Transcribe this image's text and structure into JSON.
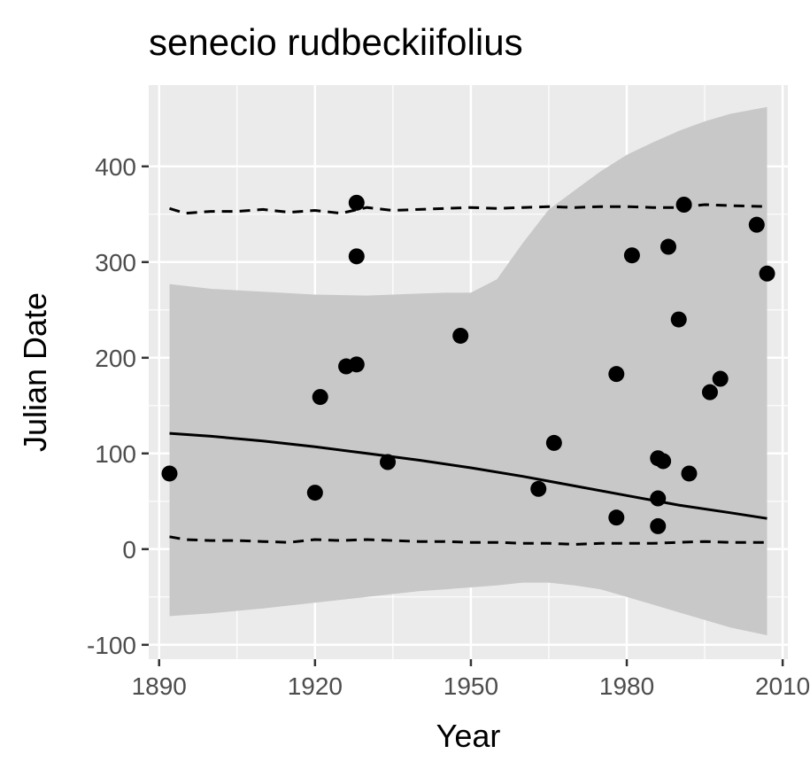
{
  "chart_data": {
    "type": "scatter",
    "title": "senecio rudbeckiifolius",
    "xlabel": "Year",
    "ylabel": "Julian Date",
    "xlim": [
      1888,
      2011
    ],
    "ylim": [
      -115,
      485
    ],
    "x_ticks": [
      1890,
      1920,
      1950,
      1980,
      2010
    ],
    "y_ticks": [
      -100,
      0,
      100,
      200,
      300,
      400
    ],
    "x_tick_labels": [
      "1890",
      "1920",
      "1950",
      "1980",
      "2010"
    ],
    "y_tick_labels": [
      "-100",
      "0",
      "100",
      "200",
      "300",
      "400"
    ],
    "grid": true,
    "colors": {
      "panel": "#ebebeb",
      "grid": "#ffffff",
      "ribbon": "#c8c8c8",
      "points": "#000000",
      "lines": "#000000"
    },
    "points": [
      {
        "x": 1892,
        "y": 79
      },
      {
        "x": 1920,
        "y": 59
      },
      {
        "x": 1921,
        "y": 159
      },
      {
        "x": 1926,
        "y": 191
      },
      {
        "x": 1928,
        "y": 362
      },
      {
        "x": 1928,
        "y": 306
      },
      {
        "x": 1928,
        "y": 193
      },
      {
        "x": 1934,
        "y": 91
      },
      {
        "x": 1948,
        "y": 223
      },
      {
        "x": 1963,
        "y": 63
      },
      {
        "x": 1966,
        "y": 111
      },
      {
        "x": 1978,
        "y": 183
      },
      {
        "x": 1978,
        "y": 33
      },
      {
        "x": 1981,
        "y": 307
      },
      {
        "x": 1986,
        "y": 95
      },
      {
        "x": 1986,
        "y": 53
      },
      {
        "x": 1986,
        "y": 24
      },
      {
        "x": 1987,
        "y": 92
      },
      {
        "x": 1988,
        "y": 316
      },
      {
        "x": 1990,
        "y": 240
      },
      {
        "x": 1991,
        "y": 360
      },
      {
        "x": 1992,
        "y": 79
      },
      {
        "x": 1996,
        "y": 164
      },
      {
        "x": 1998,
        "y": 178
      },
      {
        "x": 2005,
        "y": 339
      },
      {
        "x": 2007,
        "y": 288
      }
    ],
    "fit_line": {
      "x": [
        1892,
        1900,
        1910,
        1920,
        1930,
        1940,
        1950,
        1960,
        1970,
        1980,
        1990,
        2000,
        2007
      ],
      "y": [
        121,
        118,
        113,
        107,
        100,
        93,
        85,
        76,
        66,
        56,
        46,
        38,
        32
      ]
    },
    "ribbon": {
      "x": [
        1892,
        1900,
        1910,
        1920,
        1930,
        1940,
        1945,
        1950,
        1955,
        1960,
        1965,
        1970,
        1975,
        1980,
        1985,
        1990,
        1995,
        2000,
        2007
      ],
      "upper": [
        277,
        272,
        269,
        266,
        265,
        267,
        268,
        268,
        282,
        320,
        355,
        375,
        395,
        412,
        425,
        437,
        447,
        455,
        462
      ],
      "lower": [
        -70,
        -67,
        -62,
        -56,
        -50,
        -44,
        -42,
        -40,
        -38,
        -35,
        -35,
        -38,
        -42,
        -50,
        -58,
        -66,
        -74,
        -82,
        -90
      ]
    },
    "upper_dashed": {
      "x": [
        1892,
        1895,
        1900,
        1905,
        1910,
        1915,
        1920,
        1925,
        1930,
        1935,
        1940,
        1945,
        1950,
        1955,
        1960,
        1965,
        1970,
        1975,
        1980,
        1985,
        1990,
        1995,
        2000,
        2007
      ],
      "y": [
        356,
        351,
        353,
        353,
        355,
        352,
        354,
        351,
        357,
        354,
        355,
        356,
        357,
        356,
        357,
        358,
        357,
        358,
        358,
        357,
        357,
        360,
        359,
        358
      ]
    },
    "lower_dashed": {
      "x": [
        1892,
        1895,
        1900,
        1905,
        1910,
        1915,
        1920,
        1925,
        1930,
        1935,
        1940,
        1945,
        1950,
        1955,
        1960,
        1965,
        1970,
        1975,
        1980,
        1985,
        1990,
        1995,
        2000,
        2007
      ],
      "y": [
        13,
        10,
        9,
        9,
        8,
        7,
        10,
        9,
        10,
        9,
        8,
        8,
        7,
        7,
        6,
        6,
        5,
        6,
        6,
        6,
        7,
        8,
        7,
        7
      ]
    }
  }
}
